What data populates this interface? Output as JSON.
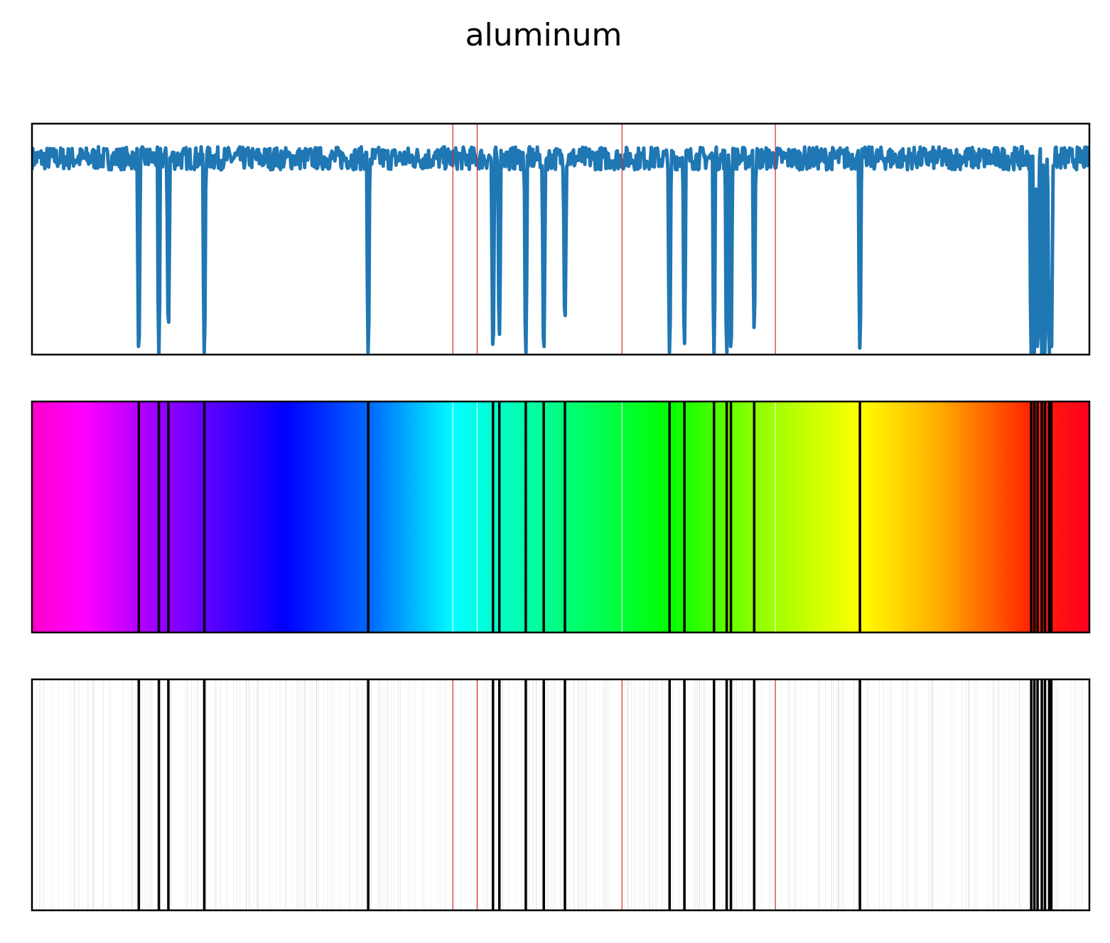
{
  "title": "aluminum",
  "colors": {
    "series": "#1f77b4",
    "marker": "#d62728",
    "frame": "#000000"
  },
  "chart_data": [
    {
      "type": "line",
      "panel": "absorption-spectrum",
      "title": "",
      "xlabel": "",
      "ylabel": "",
      "ticks": "none",
      "grid": false,
      "xlim": [
        0,
        1000
      ],
      "ylim": [
        0,
        1
      ],
      "baseline": 0.85,
      "noise": 0.05,
      "series": [
        {
          "values_note_free": true,
          "x": [
            101,
            120,
            129,
            163,
            318,
            436,
            442,
            467,
            484,
            504,
            603,
            617,
            645,
            657,
            661,
            683,
            783,
            945,
            948,
            951,
            955,
            958,
            962,
            964
          ],
          "y": [
            0.0,
            0.0,
            0.11,
            0.0,
            0.0,
            0.01,
            0.08,
            0.0,
            0.0,
            0.14,
            0.0,
            0.04,
            0.0,
            0.0,
            0.0,
            0.11,
            0.02,
            0.0,
            0.0,
            0.0,
            0.0,
            0.0,
            0.0,
            0.0
          ]
        }
      ],
      "markers": [
        398,
        421,
        558,
        703
      ]
    },
    {
      "type": "heatmap",
      "panel": "color-spectrum",
      "gradient": [
        {
          "x": 0,
          "color": "#ff00cc"
        },
        {
          "x": 50,
          "color": "#ff00ff"
        },
        {
          "x": 120,
          "color": "#9900ff"
        },
        {
          "x": 240,
          "color": "#0000ff"
        },
        {
          "x": 318,
          "color": "#0066ff"
        },
        {
          "x": 400,
          "color": "#00ffff"
        },
        {
          "x": 440,
          "color": "#00ffcc"
        },
        {
          "x": 520,
          "color": "#00ff66"
        },
        {
          "x": 603,
          "color": "#00ff00"
        },
        {
          "x": 680,
          "color": "#88ff00"
        },
        {
          "x": 783,
          "color": "#ffff00"
        },
        {
          "x": 860,
          "color": "#ffaa00"
        },
        {
          "x": 945,
          "color": "#ff2200"
        },
        {
          "x": 1000,
          "color": "#ff0022"
        }
      ],
      "lines": [
        101,
        120,
        129,
        163,
        318,
        436,
        442,
        467,
        484,
        504,
        603,
        617,
        645,
        657,
        661,
        683,
        783,
        945,
        948,
        951,
        955,
        958,
        962,
        964
      ],
      "markers": [
        398,
        421,
        558,
        703
      ]
    },
    {
      "type": "heatmap",
      "panel": "barcode-spectrum",
      "lines": [
        101,
        120,
        129,
        163,
        318,
        436,
        442,
        467,
        484,
        504,
        603,
        617,
        645,
        657,
        661,
        683,
        783,
        945,
        948,
        951,
        955,
        958,
        962,
        964
      ],
      "markers": [
        398,
        421,
        558,
        703
      ]
    }
  ]
}
